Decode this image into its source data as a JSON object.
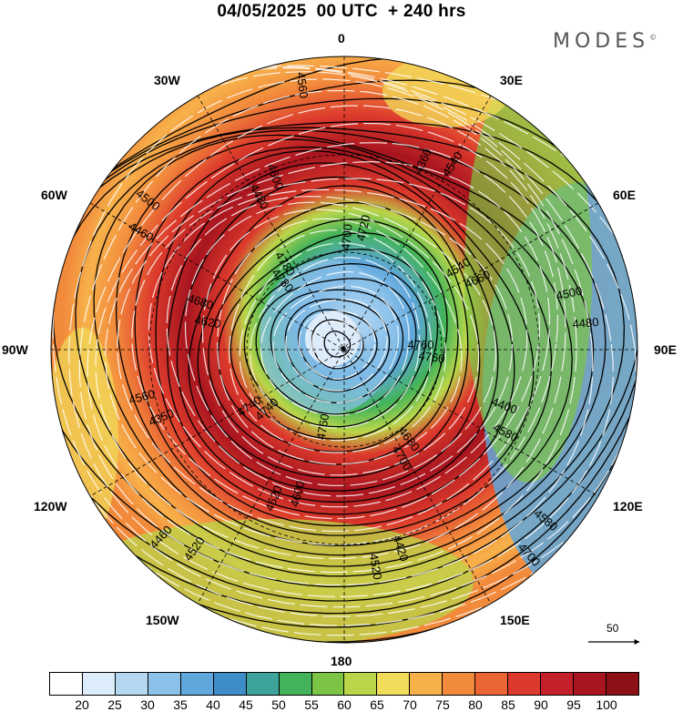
{
  "title": "04/05/2025  00 UTC  + 240 hrs",
  "brand": "MODES",
  "brand_mark": "©",
  "longitude_labels": {
    "top": "0",
    "bottom": "180",
    "left": "90W",
    "right": "90E",
    "upper_left": "30W",
    "upper_right": "30E",
    "mid_upper_left": "60W",
    "mid_upper_right": "60E",
    "mid_lower_left": "120W",
    "mid_lower_right": "120E",
    "lower_left": "150W",
    "lower_right": "150E"
  },
  "contour_labels": [
    "4760",
    "4740",
    "4700",
    "4680",
    "4620",
    "4540",
    "4600",
    "4480",
    "4400",
    "4350",
    "4360",
    "4420",
    "4460",
    "4500",
    "4520",
    "4560",
    "4580",
    "4640",
    "4660",
    "4720",
    "4780",
    "4760",
    "4740",
    "4720",
    "4700",
    "4680",
    "4660",
    "4620",
    "4600",
    "4580",
    "4560",
    "4540",
    "4520",
    "4500",
    "4480",
    "4460",
    "4440",
    "4700",
    "4720",
    "4740",
    "4760",
    "4780"
  ],
  "reference_arrow_label": "50",
  "colorbar": {
    "colors": [
      "#ffffff",
      "#dcecfa",
      "#b4d8f2",
      "#8cc2ea",
      "#5fa7dc",
      "#3e8cc8",
      "#3ea39a",
      "#42b35a",
      "#7cc444",
      "#b9d64a",
      "#f1dc5a",
      "#f7b14a",
      "#f28a3c",
      "#ea6434",
      "#dc3a2c",
      "#c4202a",
      "#a8151f",
      "#8c1016"
    ],
    "ticks": [
      "20",
      "25",
      "30",
      "35",
      "40",
      "45",
      "50",
      "55",
      "60",
      "65",
      "70",
      "75",
      "80",
      "85",
      "90",
      "95",
      "100"
    ]
  }
}
